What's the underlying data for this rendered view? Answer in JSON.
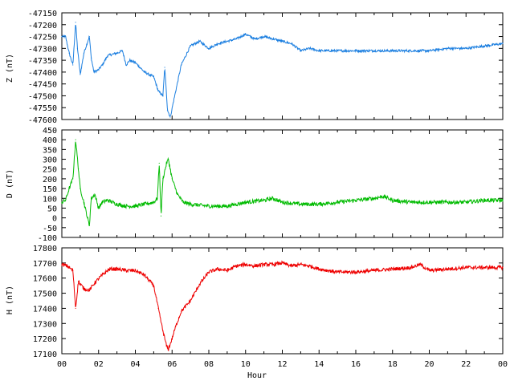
{
  "chart_data": [
    {
      "type": "line",
      "ylabel": "Z (nT)",
      "ylim": [
        -47600,
        -47150
      ],
      "yticks": [
        "-47150",
        "-47200",
        "-47250",
        "-47300",
        "-47350",
        "-47400",
        "-47450",
        "-47500",
        "-47550",
        "-47600"
      ],
      "xlim": [
        0,
        24
      ],
      "color": "#1c7fe0",
      "noise": 5,
      "x": [
        0,
        0.2,
        0.4,
        0.6,
        0.75,
        0.85,
        1,
        1.2,
        1.5,
        1.6,
        1.75,
        2.0,
        2.2,
        2.5,
        3,
        3.3,
        3.5,
        3.7,
        4,
        4.5,
        5,
        5.25,
        5.5,
        5.6,
        5.75,
        5.9,
        6.2,
        6.5,
        7,
        7.5,
        8,
        8.5,
        9,
        9.5,
        10,
        10.5,
        11,
        11.5,
        12,
        12.5,
        13,
        13.5,
        14,
        15,
        16,
        17,
        18,
        19,
        20,
        21,
        22,
        23,
        24
      ],
      "values": [
        -47250,
        -47250,
        -47320,
        -47370,
        -47190,
        -47300,
        -47410,
        -47320,
        -47250,
        -47340,
        -47400,
        -47390,
        -47370,
        -47330,
        -47320,
        -47310,
        -47370,
        -47350,
        -47360,
        -47400,
        -47420,
        -47480,
        -47500,
        -47380,
        -47560,
        -47590,
        -47480,
        -47370,
        -47290,
        -47270,
        -47300,
        -47280,
        -47270,
        -47260,
        -47240,
        -47260,
        -47250,
        -47260,
        -47270,
        -47280,
        -47310,
        -47300,
        -47310,
        -47310,
        -47310,
        -47310,
        -47310,
        -47310,
        -47310,
        -47300,
        -47300,
        -47290,
        -47280
      ]
    },
    {
      "type": "line",
      "ylabel": "D (nT)",
      "ylim": [
        -100,
        450
      ],
      "yticks": [
        "450",
        "400",
        "350",
        "300",
        "250",
        "200",
        "150",
        "100",
        "50",
        "0",
        "-50",
        "-100"
      ],
      "xlim": [
        0,
        24
      ],
      "color": "#00bb00",
      "noise": 10,
      "x": [
        0,
        0.2,
        0.4,
        0.6,
        0.75,
        0.9,
        1,
        1.2,
        1.5,
        1.6,
        1.8,
        2.0,
        2.2,
        2.5,
        3,
        3.5,
        4,
        4.5,
        5,
        5.2,
        5.3,
        5.4,
        5.5,
        5.7,
        5.8,
        6,
        6.3,
        6.6,
        7,
        8,
        9,
        10,
        11,
        11.5,
        12,
        13,
        14,
        15,
        16,
        17,
        17.5,
        18,
        19,
        20,
        21,
        22,
        23,
        24
      ],
      "values": [
        80,
        90,
        150,
        200,
        400,
        250,
        150,
        80,
        -40,
        100,
        120,
        50,
        80,
        90,
        70,
        60,
        60,
        70,
        80,
        100,
        280,
        10,
        200,
        280,
        300,
        200,
        120,
        80,
        70,
        60,
        60,
        80,
        90,
        100,
        80,
        70,
        70,
        80,
        90,
        100,
        110,
        90,
        80,
        80,
        80,
        80,
        90,
        90
      ]
    },
    {
      "type": "line",
      "ylabel": "H (nT)",
      "ylim": [
        17100,
        17800
      ],
      "yticks": [
        "17800",
        "17700",
        "17600",
        "17500",
        "17400",
        "17300",
        "17200",
        "17100"
      ],
      "xlim": [
        0,
        24
      ],
      "color": "#ee0000",
      "noise": 12,
      "x": [
        0,
        0.3,
        0.6,
        0.75,
        0.9,
        1,
        1.2,
        1.5,
        1.8,
        2.2,
        2.6,
        3,
        3.5,
        4,
        4.5,
        5,
        5.25,
        5.5,
        5.7,
        5.8,
        6,
        6.2,
        6.5,
        7,
        7.5,
        8,
        8.5,
        9,
        9.5,
        10,
        10.5,
        11,
        11.5,
        12,
        12.5,
        13,
        13.5,
        14,
        15,
        16,
        17,
        18,
        19,
        19.5,
        20,
        21,
        22,
        23,
        24
      ],
      "values": [
        17690,
        17680,
        17650,
        17400,
        17580,
        17560,
        17530,
        17520,
        17570,
        17620,
        17660,
        17660,
        17650,
        17650,
        17620,
        17550,
        17400,
        17250,
        17150,
        17130,
        17200,
        17280,
        17380,
        17450,
        17560,
        17640,
        17660,
        17650,
        17680,
        17690,
        17680,
        17690,
        17690,
        17700,
        17680,
        17690,
        17680,
        17660,
        17640,
        17640,
        17650,
        17660,
        17670,
        17690,
        17650,
        17660,
        17670,
        17670,
        17670
      ]
    }
  ],
  "x_axis": {
    "title": "Hour",
    "tick_labels": [
      "00",
      "02",
      "04",
      "06",
      "08",
      "10",
      "12",
      "14",
      "16",
      "18",
      "20",
      "22",
      "00"
    ]
  }
}
